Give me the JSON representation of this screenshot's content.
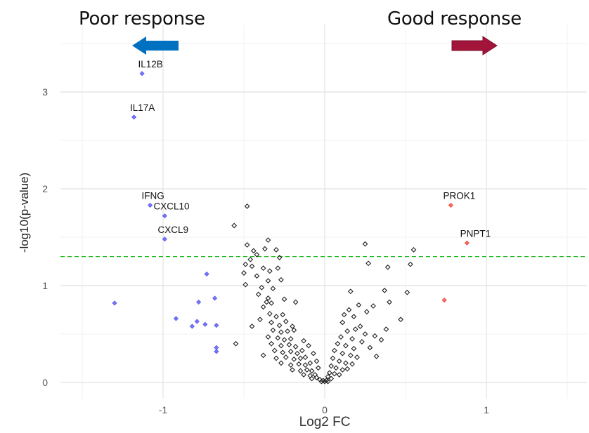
{
  "headers": {
    "left_label": "Poor response",
    "right_label": "Good response",
    "left_arrow_icon": "arrow-left-icon",
    "right_arrow_icon": "arrow-right-icon",
    "left_arrow_color": "#0070C0",
    "right_arrow_color": "#A3143A"
  },
  "chart_data": {
    "type": "scatter",
    "title": "",
    "xlabel": "Log2 FC",
    "ylabel": "-log10(p-value)",
    "xlim": [
      -1.6,
      1.6
    ],
    "ylim": [
      -0.1,
      3.5
    ],
    "x_ticks": [
      -1,
      0,
      1
    ],
    "x_tick_labels": [
      "-1",
      "0",
      "1"
    ],
    "y_ticks": [
      0,
      1,
      2,
      3
    ],
    "y_tick_labels": [
      "0",
      "1",
      "2",
      "3"
    ],
    "grid": true,
    "threshold": {
      "y": 1.3,
      "color": "#22BB22",
      "style": "dashed"
    },
    "colors": {
      "down": "#4A4AF0",
      "up": "#EE3B2E",
      "ns": "#222222"
    },
    "labels": [
      {
        "text": "IL12B",
        "x": -1.13,
        "y": 3.19
      },
      {
        "text": "IL17A",
        "x": -1.18,
        "y": 2.74
      },
      {
        "text": "IFNG",
        "x": -1.08,
        "y": 1.83
      },
      {
        "text": "CXCL10",
        "x": -1.0,
        "y": 1.72
      },
      {
        "text": "CXCL9",
        "x": -0.99,
        "y": 1.48
      },
      {
        "text": "PROK1",
        "x": 0.78,
        "y": 1.83
      },
      {
        "text": "PNPT1",
        "x": 0.88,
        "y": 1.44
      }
    ],
    "series": [
      {
        "name": "down",
        "points": [
          [
            -1.13,
            3.19
          ],
          [
            -1.18,
            2.74
          ],
          [
            -1.08,
            1.83
          ],
          [
            -0.99,
            1.72
          ],
          [
            -0.99,
            1.48
          ],
          [
            -1.3,
            0.82
          ],
          [
            -0.92,
            0.66
          ],
          [
            -0.82,
            0.58
          ],
          [
            -0.79,
            0.63
          ],
          [
            -0.74,
            0.6
          ],
          [
            -0.67,
            0.59
          ],
          [
            -0.78,
            0.83
          ],
          [
            -0.68,
            0.87
          ],
          [
            -0.73,
            1.12
          ],
          [
            -0.67,
            0.36
          ],
          [
            -0.67,
            0.32
          ]
        ]
      },
      {
        "name": "up",
        "points": [
          [
            0.78,
            1.83
          ],
          [
            0.88,
            1.44
          ],
          [
            0.74,
            0.85
          ]
        ]
      },
      {
        "name": "ns",
        "points": [
          [
            -0.48,
            1.82
          ],
          [
            -0.56,
            1.62
          ],
          [
            -0.35,
            1.47
          ],
          [
            -0.48,
            1.42
          ],
          [
            -0.44,
            1.36
          ],
          [
            -0.42,
            1.32
          ],
          [
            -0.37,
            1.38
          ],
          [
            -0.3,
            1.37
          ],
          [
            -0.28,
            1.29
          ],
          [
            -0.46,
            1.27
          ],
          [
            -0.49,
            1.22
          ],
          [
            -0.45,
            1.2
          ],
          [
            -0.38,
            1.18
          ],
          [
            -0.34,
            1.15
          ],
          [
            -0.29,
            1.18
          ],
          [
            -0.5,
            1.13
          ],
          [
            -0.42,
            1.1
          ],
          [
            -0.35,
            1.05
          ],
          [
            -0.27,
            1.06
          ],
          [
            -0.49,
            1.01
          ],
          [
            -0.39,
            0.98
          ],
          [
            -0.32,
            0.97
          ],
          [
            -0.41,
            0.91
          ],
          [
            -0.35,
            0.87
          ],
          [
            -0.36,
            0.83
          ],
          [
            -0.33,
            0.82
          ],
          [
            -0.25,
            0.86
          ],
          [
            -0.18,
            0.83
          ],
          [
            -0.38,
            0.78
          ],
          [
            -0.34,
            0.71
          ],
          [
            -0.3,
            0.68
          ],
          [
            -0.26,
            0.7
          ],
          [
            -0.33,
            0.62
          ],
          [
            -0.28,
            0.59
          ],
          [
            -0.24,
            0.63
          ],
          [
            -0.2,
            0.58
          ],
          [
            -0.32,
            0.54
          ],
          [
            -0.27,
            0.52
          ],
          [
            -0.23,
            0.53
          ],
          [
            -0.19,
            0.54
          ],
          [
            -0.35,
            0.47
          ],
          [
            -0.29,
            0.46
          ],
          [
            -0.25,
            0.44
          ],
          [
            -0.21,
            0.45
          ],
          [
            -0.33,
            0.4
          ],
          [
            -0.27,
            0.38
          ],
          [
            -0.22,
            0.39
          ],
          [
            -0.18,
            0.37
          ],
          [
            -0.31,
            0.33
          ],
          [
            -0.26,
            0.31
          ],
          [
            -0.21,
            0.32
          ],
          [
            -0.17,
            0.3
          ],
          [
            -0.14,
            0.33
          ],
          [
            -0.38,
            0.28
          ],
          [
            -0.3,
            0.25
          ],
          [
            -0.24,
            0.26
          ],
          [
            -0.19,
            0.24
          ],
          [
            -0.15,
            0.25
          ],
          [
            -0.12,
            0.26
          ],
          [
            -0.27,
            0.2
          ],
          [
            -0.21,
            0.18
          ],
          [
            -0.16,
            0.19
          ],
          [
            -0.12,
            0.18
          ],
          [
            -0.09,
            0.2
          ],
          [
            -0.2,
            0.13
          ],
          [
            -0.15,
            0.12
          ],
          [
            -0.11,
            0.13
          ],
          [
            -0.08,
            0.12
          ],
          [
            -0.13,
            0.08
          ],
          [
            -0.09,
            0.07
          ],
          [
            -0.06,
            0.08
          ],
          [
            -0.08,
            0.04
          ],
          [
            -0.05,
            0.05
          ],
          [
            -0.03,
            0.03
          ],
          [
            -0.02,
            0.01
          ],
          [
            -0.55,
            0.4
          ],
          [
            -0.45,
            0.58
          ],
          [
            -0.4,
            0.65
          ],
          [
            -0.13,
            0.43
          ],
          [
            -0.1,
            0.38
          ],
          [
            -0.07,
            0.3
          ],
          [
            -0.05,
            0.22
          ],
          [
            -0.04,
            0.15
          ],
          [
            0.25,
            1.43
          ],
          [
            0.55,
            1.37
          ],
          [
            0.53,
            1.22
          ],
          [
            0.27,
            1.23
          ],
          [
            0.39,
            1.19
          ],
          [
            0.16,
            0.94
          ],
          [
            0.37,
            0.95
          ],
          [
            0.51,
            0.93
          ],
          [
            0.21,
            0.8
          ],
          [
            0.3,
            0.79
          ],
          [
            0.15,
            0.75
          ],
          [
            0.26,
            0.73
          ],
          [
            0.12,
            0.7
          ],
          [
            0.18,
            0.68
          ],
          [
            0.4,
            0.83
          ],
          [
            0.47,
            0.65
          ],
          [
            0.38,
            0.55
          ],
          [
            0.22,
            0.58
          ],
          [
            0.11,
            0.62
          ],
          [
            0.19,
            0.55
          ],
          [
            0.14,
            0.53
          ],
          [
            0.25,
            0.5
          ],
          [
            0.31,
            0.48
          ],
          [
            0.1,
            0.47
          ],
          [
            0.17,
            0.45
          ],
          [
            0.23,
            0.42
          ],
          [
            0.35,
            0.44
          ],
          [
            0.08,
            0.4
          ],
          [
            0.13,
            0.38
          ],
          [
            0.18,
            0.35
          ],
          [
            0.28,
            0.36
          ],
          [
            0.06,
            0.33
          ],
          [
            0.11,
            0.3
          ],
          [
            0.16,
            0.28
          ],
          [
            0.2,
            0.26
          ],
          [
            0.32,
            0.27
          ],
          [
            0.05,
            0.25
          ],
          [
            0.09,
            0.22
          ],
          [
            0.13,
            0.2
          ],
          [
            0.17,
            0.19
          ],
          [
            0.04,
            0.17
          ],
          [
            0.07,
            0.15
          ],
          [
            0.11,
            0.13
          ],
          [
            0.14,
            0.14
          ],
          [
            0.03,
            0.1
          ],
          [
            0.06,
            0.09
          ],
          [
            0.09,
            0.08
          ],
          [
            0.02,
            0.06
          ],
          [
            0.04,
            0.04
          ],
          [
            0.01,
            0.02
          ],
          [
            0.0,
            0.01
          ],
          [
            -0.01,
            0.02
          ],
          [
            0.02,
            0.01
          ]
        ]
      }
    ]
  }
}
